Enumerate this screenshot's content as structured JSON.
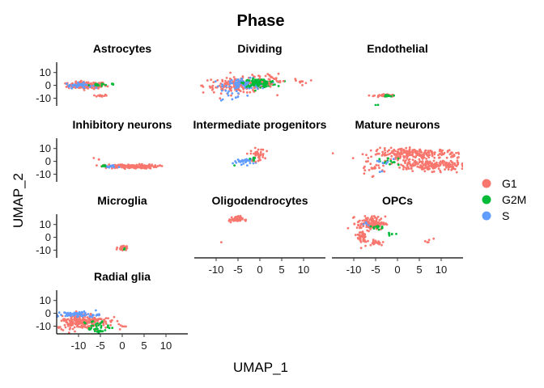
{
  "chart_data": {
    "type": "scatter",
    "title": "Phase",
    "xlabel": "UMAP_1",
    "ylabel": "UMAP_2",
    "xlim": [
      -15,
      15
    ],
    "ylim": [
      -16,
      18
    ],
    "xticks": [
      -10,
      -5,
      0,
      5,
      10
    ],
    "yticks": [
      -10,
      0,
      10
    ],
    "grid": false,
    "legend": {
      "placement": "right",
      "items": [
        {
          "label": "G1",
          "color": "#F8766D"
        },
        {
          "label": "G2M",
          "color": "#00BA38"
        },
        {
          "label": "S",
          "color": "#619CFF"
        }
      ]
    },
    "panels": [
      {
        "name": "Astrocytes",
        "clusters": [
          {
            "phase": "G1",
            "cx": -8,
            "cy": 0,
            "sx": 2.2,
            "sy": 1.4,
            "n": 160
          },
          {
            "phase": "G1",
            "cx": -5,
            "cy": -8,
            "sx": 0.8,
            "sy": 0.5,
            "n": 14
          },
          {
            "phase": "S",
            "cx": -10,
            "cy": 0,
            "sx": 1.5,
            "sy": 1.0,
            "n": 40
          },
          {
            "phase": "G2M",
            "cx": -6,
            "cy": 0.5,
            "sx": 0.8,
            "sy": 0.6,
            "n": 14
          },
          {
            "phase": "G2M",
            "cx": -2,
            "cy": 1,
            "sx": 0.4,
            "sy": 0.4,
            "n": 4
          }
        ]
      },
      {
        "name": "Dividing",
        "clusters": [
          {
            "phase": "G1",
            "cx": -5,
            "cy": 0,
            "sx": 4,
            "sy": 3,
            "n": 150
          },
          {
            "phase": "S",
            "cx": -3,
            "cy": 1,
            "sx": 2.5,
            "sy": 2,
            "n": 110
          },
          {
            "phase": "G2M",
            "cx": 0,
            "cy": 2,
            "sx": 1.8,
            "sy": 1.5,
            "n": 120
          },
          {
            "phase": "G1",
            "cx": 3,
            "cy": 5,
            "sx": 3,
            "sy": 3,
            "n": 30
          },
          {
            "phase": "S",
            "cx": -6,
            "cy": -7,
            "sx": 2,
            "sy": 3,
            "n": 14
          },
          {
            "phase": "G1",
            "cx": 10,
            "cy": 3,
            "sx": 1.5,
            "sy": 1,
            "n": 6
          }
        ]
      },
      {
        "name": "Endothelial",
        "clusters": [
          {
            "phase": "G1",
            "cx": -3,
            "cy": -8,
            "sx": 1.2,
            "sy": 0.6,
            "n": 36
          },
          {
            "phase": "G2M",
            "cx": -2,
            "cy": -8,
            "sx": 0.5,
            "sy": 0.4,
            "n": 10
          },
          {
            "phase": "G2M",
            "cx": -4.5,
            "cy": -15,
            "sx": 0.2,
            "sy": 0.3,
            "n": 2
          }
        ]
      },
      {
        "name": "Inhibitory neurons",
        "clusters": [
          {
            "phase": "G1",
            "cx": 2,
            "cy": -4,
            "sx": 3,
            "sy": 0.8,
            "n": 170
          },
          {
            "phase": "S",
            "cx": -3,
            "cy": -4,
            "sx": 1,
            "sy": 0.5,
            "n": 20
          },
          {
            "phase": "G2M",
            "cx": -4,
            "cy": -3.5,
            "sx": 0.6,
            "sy": 0.4,
            "n": 10
          },
          {
            "phase": "G1",
            "cx": -6,
            "cy": 2,
            "sx": 0.5,
            "sy": 0.5,
            "n": 3
          }
        ]
      },
      {
        "name": "Intermediate progenitors",
        "clusters": [
          {
            "phase": "S",
            "cx": -3.5,
            "cy": 0,
            "sx": 1.2,
            "sy": 1.2,
            "n": 30
          },
          {
            "phase": "G1",
            "cx": -0.5,
            "cy": 5,
            "sx": 0.8,
            "sy": 2.5,
            "n": 40
          },
          {
            "phase": "G2M",
            "cx": -1.5,
            "cy": 2,
            "sx": 0.6,
            "sy": 0.6,
            "n": 8
          },
          {
            "phase": "G2M",
            "cx": -6,
            "cy": -3,
            "sx": 0.2,
            "sy": 0.2,
            "n": 1
          }
        ]
      },
      {
        "name": "Mature neurons",
        "clusters": [
          {
            "phase": "G1",
            "cx": 4,
            "cy": 6,
            "sx": 5,
            "sy": 2,
            "n": 220
          },
          {
            "phase": "G1",
            "cx": 8,
            "cy": -3,
            "sx": 5,
            "sy": 2.2,
            "n": 220
          },
          {
            "phase": "G2M",
            "cx": -2,
            "cy": 0,
            "sx": 1.2,
            "sy": 1.5,
            "n": 14
          },
          {
            "phase": "S",
            "cx": -3,
            "cy": 0,
            "sx": 1,
            "sy": 1.5,
            "n": 8
          },
          {
            "phase": "G1",
            "cx": -6,
            "cy": -6,
            "sx": 2,
            "sy": 4,
            "n": 16
          },
          {
            "phase": "S",
            "cx": -4,
            "cy": -8,
            "sx": 0.4,
            "sy": 0.4,
            "n": 2
          }
        ]
      },
      {
        "name": "Microglia",
        "clusters": [
          {
            "phase": "G1",
            "cx": 0,
            "cy": -8,
            "sx": 0.5,
            "sy": 0.9,
            "n": 28
          },
          {
            "phase": "G2M",
            "cx": 0.4,
            "cy": -9,
            "sx": 0.2,
            "sy": 0.3,
            "n": 3
          }
        ]
      },
      {
        "name": "Oligodendrocytes",
        "clusters": [
          {
            "phase": "G1",
            "cx": -5.5,
            "cy": 14,
            "sx": 0.8,
            "sy": 1.2,
            "n": 50
          },
          {
            "phase": "G1",
            "cx": -9,
            "cy": -4,
            "sx": 0.2,
            "sy": 0.2,
            "n": 1
          }
        ]
      },
      {
        "name": "OPCs",
        "clusters": [
          {
            "phase": "G1",
            "cx": -6,
            "cy": 11,
            "sx": 1.6,
            "sy": 2.6,
            "n": 130
          },
          {
            "phase": "G1",
            "cx": -8,
            "cy": 0,
            "sx": 0.6,
            "sy": 3.5,
            "n": 40
          },
          {
            "phase": "G1",
            "cx": -5,
            "cy": -4,
            "sx": 1,
            "sy": 1.2,
            "n": 20
          },
          {
            "phase": "G2M",
            "cx": -4.5,
            "cy": 8,
            "sx": 0.8,
            "sy": 0.8,
            "n": 14
          },
          {
            "phase": "G2M",
            "cx": -1,
            "cy": 2.5,
            "sx": 0.5,
            "sy": 0.5,
            "n": 6
          },
          {
            "phase": "S",
            "cx": -7,
            "cy": 10,
            "sx": 0.6,
            "sy": 1,
            "n": 6
          },
          {
            "phase": "G1",
            "cx": 7,
            "cy": -3,
            "sx": 1.2,
            "sy": 1.5,
            "n": 5
          }
        ]
      },
      {
        "name": "Radial glia",
        "clusters": [
          {
            "phase": "G1",
            "cx": -9,
            "cy": -6,
            "sx": 3,
            "sy": 3,
            "n": 230
          },
          {
            "phase": "S",
            "cx": -10,
            "cy": -1,
            "sx": 2.5,
            "sy": 1.2,
            "n": 60
          },
          {
            "phase": "G2M",
            "cx": -6,
            "cy": -10,
            "sx": 1.5,
            "sy": 2.2,
            "n": 30
          },
          {
            "phase": "G2M",
            "cx": -5.5,
            "cy": -14,
            "sx": 0.5,
            "sy": 0.5,
            "n": 8
          },
          {
            "phase": "G1",
            "cx": 0,
            "cy": -10,
            "sx": 0.4,
            "sy": 0.4,
            "n": 4
          }
        ]
      }
    ]
  }
}
